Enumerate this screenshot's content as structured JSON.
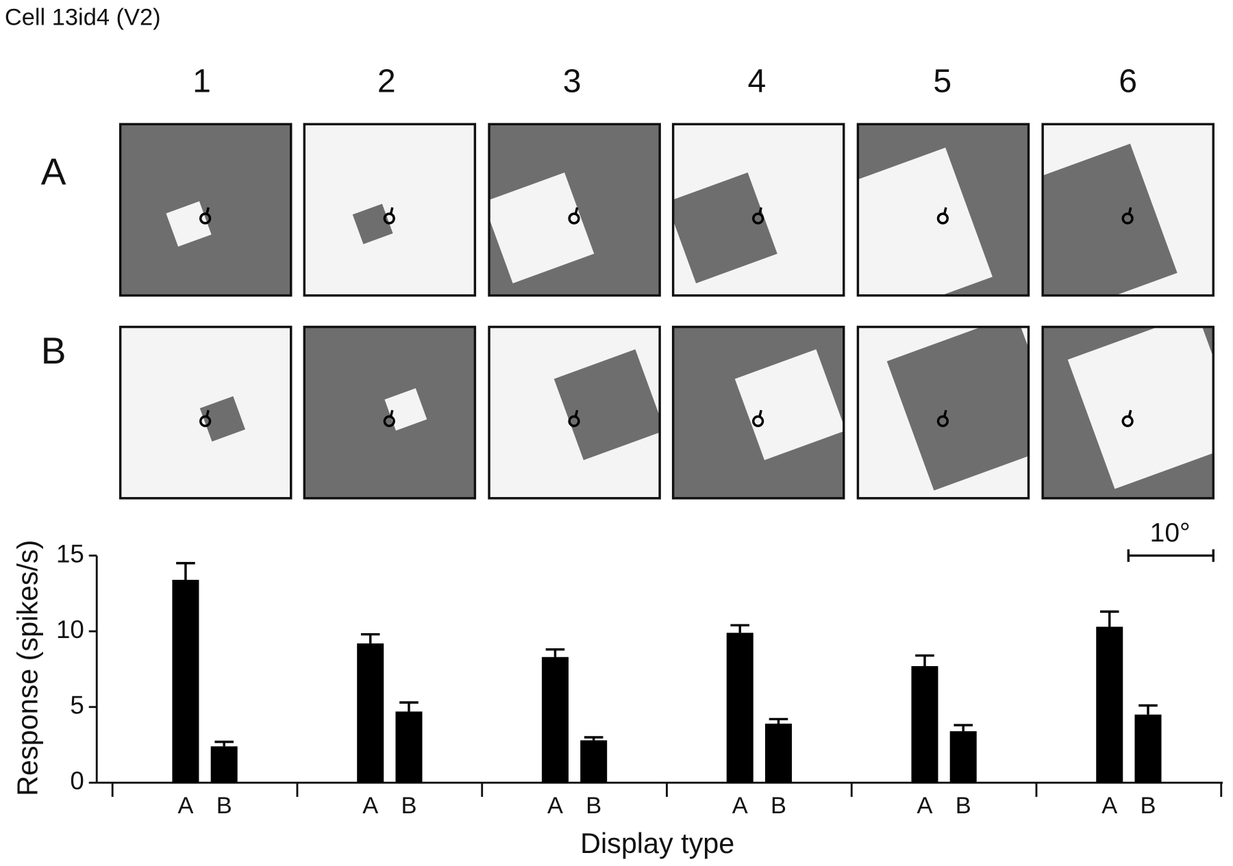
{
  "chart_data": {
    "type": "bar",
    "title": "Cell 13id4 (V2)",
    "groups": [
      "1",
      "2",
      "3",
      "4",
      "5",
      "6"
    ],
    "series": [
      {
        "name": "A",
        "color": "#000000",
        "values": [
          13.4,
          9.2,
          8.3,
          9.9,
          7.7,
          10.3
        ],
        "errors": [
          1.1,
          0.6,
          0.5,
          0.5,
          0.7,
          1.0
        ]
      },
      {
        "name": "B",
        "color": "#000000",
        "values": [
          2.4,
          4.7,
          2.8,
          3.9,
          3.4,
          4.5
        ],
        "errors": [
          0.3,
          0.6,
          0.2,
          0.3,
          0.4,
          0.6
        ]
      }
    ],
    "ylim": [
      0,
      15
    ],
    "yticks": [
      0,
      5,
      10,
      15
    ],
    "ylabel": "Response (spikes/s)",
    "xlabel": "Display type",
    "scale_bar": "10°",
    "grid": false
  }
}
